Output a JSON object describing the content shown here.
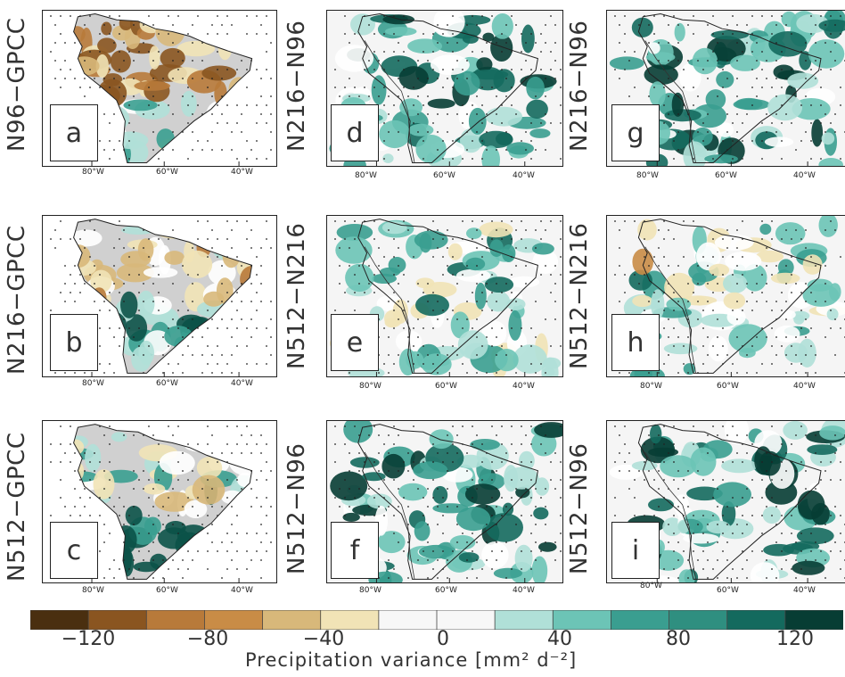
{
  "panels": [
    {
      "id": "a",
      "label": "a",
      "row_label": "N96−GPCC",
      "type": "diff-gpcc"
    },
    {
      "id": "b",
      "label": "b",
      "row_label": "N216−GPCC",
      "type": "diff-gpcc"
    },
    {
      "id": "c",
      "label": "c",
      "row_label": "N512−GPCC",
      "type": "diff-gpcc"
    },
    {
      "id": "d",
      "label": "d",
      "row_label": "N216−N96",
      "type": "model-diff"
    },
    {
      "id": "e",
      "label": "e",
      "row_label": "N512−N216",
      "type": "model-diff"
    },
    {
      "id": "f",
      "label": "f",
      "row_label": "N512−N96",
      "type": "model-diff"
    },
    {
      "id": "g",
      "label": "g",
      "row_label": "N216−N96",
      "type": "model-diff"
    },
    {
      "id": "h",
      "label": "h",
      "row_label": "N512−N216",
      "type": "model-diff"
    },
    {
      "id": "i",
      "label": "i",
      "row_label": "N512−N96",
      "type": "model-diff"
    }
  ],
  "lon_ticks": [
    "80°W",
    "60°W",
    "40°W"
  ],
  "colorbar": {
    "labels": [
      "−120",
      "−80",
      "−40",
      "0",
      "40",
      "80",
      "120"
    ],
    "label_values": [
      -120,
      -80,
      -40,
      0,
      40,
      80,
      120
    ],
    "bins": [
      -140,
      -120,
      -100,
      -80,
      -60,
      -40,
      -20,
      0,
      20,
      40,
      60,
      80,
      100,
      120,
      140
    ],
    "colors": [
      "#4a2f10",
      "#8a5520",
      "#b87a3a",
      "#c98c46",
      "#d8b87a",
      "#f1e3b6",
      "#f7f7f7",
      "#f7f7f7",
      "#b0e0d8",
      "#6cc4b6",
      "#3a9e90",
      "#2f8f80",
      "#146a5e",
      "#073d34"
    ],
    "title": "Precipitation variance [mm² d⁻²]"
  },
  "colors": {
    "land_mask": "#d0d0d0",
    "ocean": "#f5f5f5",
    "coast": "#222222"
  }
}
